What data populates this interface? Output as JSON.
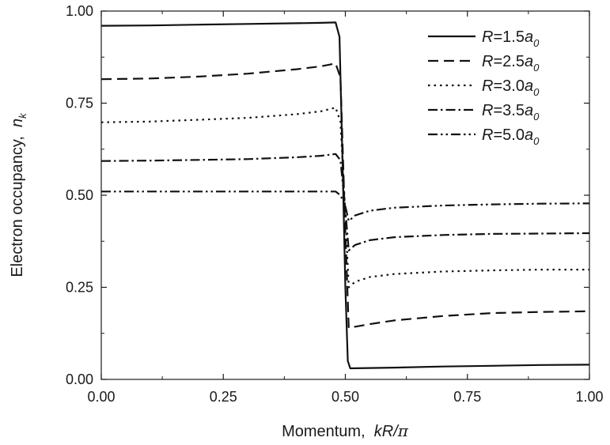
{
  "chart_data": {
    "type": "line",
    "title": "",
    "xlabel": {
      "prefix": "Momentum,  ",
      "var": "kR/",
      "pi": "π"
    },
    "ylabel": {
      "prefix": "Electron occupancy,  ",
      "var": "n",
      "sub": "k"
    },
    "xlim": [
      0,
      1
    ],
    "ylim": [
      0,
      1
    ],
    "xticks": [
      "0.00",
      "0.25",
      "0.50",
      "0.75",
      "1.00"
    ],
    "yticks": [
      "0.00",
      "0.25",
      "0.50",
      "0.75",
      "1.00"
    ],
    "grid": false,
    "legend_position": "top-right",
    "series": [
      {
        "name": "R=1.5a0",
        "label": {
          "r": "R",
          "eq": "=1.5",
          "a": "a",
          "sub": "0"
        },
        "dash": "solid",
        "points": [
          [
            0,
            0.96
          ],
          [
            0.1,
            0.961
          ],
          [
            0.2,
            0.963
          ],
          [
            0.3,
            0.965
          ],
          [
            0.4,
            0.967
          ],
          [
            0.45,
            0.968
          ],
          [
            0.48,
            0.969
          ],
          [
            0.488,
            0.93
          ],
          [
            0.495,
            0.55
          ],
          [
            0.5,
            0.25
          ],
          [
            0.505,
            0.05
          ],
          [
            0.51,
            0.03
          ],
          [
            0.6,
            0.032
          ],
          [
            0.7,
            0.035
          ],
          [
            0.8,
            0.037
          ],
          [
            0.9,
            0.039
          ],
          [
            1.0,
            0.04
          ]
        ]
      },
      {
        "name": "R=2.5a0",
        "label": {
          "r": "R",
          "eq": "=2.5",
          "a": "a",
          "sub": "0"
        },
        "dash": "dashed",
        "points": [
          [
            0,
            0.815
          ],
          [
            0.1,
            0.817
          ],
          [
            0.2,
            0.822
          ],
          [
            0.3,
            0.83
          ],
          [
            0.4,
            0.842
          ],
          [
            0.45,
            0.85
          ],
          [
            0.48,
            0.858
          ],
          [
            0.49,
            0.82
          ],
          [
            0.5,
            0.4
          ],
          [
            0.507,
            0.14
          ],
          [
            0.55,
            0.15
          ],
          [
            0.6,
            0.16
          ],
          [
            0.7,
            0.172
          ],
          [
            0.8,
            0.18
          ],
          [
            0.9,
            0.183
          ],
          [
            1.0,
            0.185
          ]
        ]
      },
      {
        "name": "R=3.0a0",
        "label": {
          "r": "R",
          "eq": "=3.0",
          "a": "a",
          "sub": "0"
        },
        "dash": "dotted",
        "points": [
          [
            0,
            0.698
          ],
          [
            0.1,
            0.7
          ],
          [
            0.2,
            0.705
          ],
          [
            0.3,
            0.71
          ],
          [
            0.4,
            0.72
          ],
          [
            0.45,
            0.728
          ],
          [
            0.48,
            0.738
          ],
          [
            0.49,
            0.7
          ],
          [
            0.5,
            0.45
          ],
          [
            0.507,
            0.25
          ],
          [
            0.52,
            0.265
          ],
          [
            0.55,
            0.278
          ],
          [
            0.6,
            0.286
          ],
          [
            0.7,
            0.293
          ],
          [
            0.8,
            0.296
          ],
          [
            0.9,
            0.298
          ],
          [
            1.0,
            0.298
          ]
        ]
      },
      {
        "name": "R=3.5a0",
        "label": {
          "r": "R",
          "eq": "=3.5",
          "a": "a",
          "sub": "0"
        },
        "dash": "dash-dot",
        "points": [
          [
            0,
            0.593
          ],
          [
            0.1,
            0.594
          ],
          [
            0.2,
            0.596
          ],
          [
            0.3,
            0.598
          ],
          [
            0.4,
            0.603
          ],
          [
            0.45,
            0.607
          ],
          [
            0.48,
            0.612
          ],
          [
            0.49,
            0.595
          ],
          [
            0.5,
            0.46
          ],
          [
            0.507,
            0.35
          ],
          [
            0.52,
            0.365
          ],
          [
            0.55,
            0.378
          ],
          [
            0.6,
            0.386
          ],
          [
            0.7,
            0.392
          ],
          [
            0.8,
            0.395
          ],
          [
            0.9,
            0.396
          ],
          [
            1.0,
            0.397
          ]
        ]
      },
      {
        "name": "R=5.0a0",
        "label": {
          "r": "R",
          "eq": "=5.0",
          "a": "a",
          "sub": "0"
        },
        "dash": "dash-dot-dot",
        "points": [
          [
            0,
            0.51
          ],
          [
            0.1,
            0.51
          ],
          [
            0.2,
            0.51
          ],
          [
            0.3,
            0.51
          ],
          [
            0.4,
            0.51
          ],
          [
            0.45,
            0.51
          ],
          [
            0.48,
            0.51
          ],
          [
            0.49,
            0.5
          ],
          [
            0.5,
            0.47
          ],
          [
            0.507,
            0.43
          ],
          [
            0.52,
            0.445
          ],
          [
            0.55,
            0.458
          ],
          [
            0.6,
            0.466
          ],
          [
            0.7,
            0.472
          ],
          [
            0.8,
            0.475
          ],
          [
            0.9,
            0.477
          ],
          [
            1.0,
            0.478
          ]
        ]
      }
    ]
  }
}
